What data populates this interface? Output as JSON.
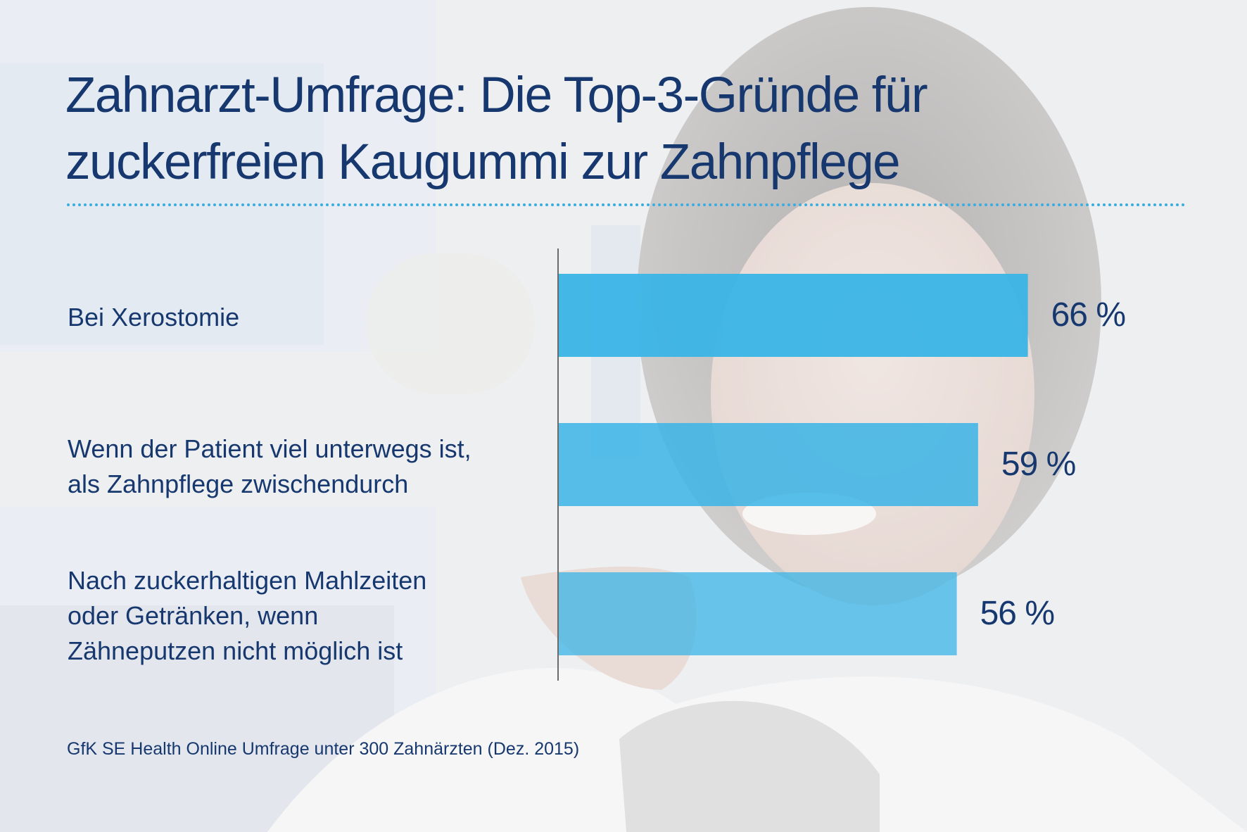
{
  "title_lines": [
    "Zahnarzt-Umfrage: Die Top-3-Gründe für",
    "zuckerfreien Kaugummi zur Zahnpflege"
  ],
  "source": "GfK SE Health Online Umfrage unter 300 Zahnärzten (Dez. 2015)",
  "colors": {
    "text": "#17386f",
    "bar": "#3ab4e6",
    "divider": "#38ade2",
    "axis": "#6b6b6b"
  },
  "background_description_icon": "dentist-photo-background",
  "chart_data": {
    "type": "bar",
    "orientation": "horizontal",
    "categories": [
      [
        "Bei Xerostomie"
      ],
      [
        "Wenn der Patient viel unterwegs ist,",
        "als Zahnpflege zwischendurch"
      ],
      [
        "Nach zuckerhaltigen Mahlzeiten",
        "oder Getränken, wenn",
        "Zähneputzen nicht möglich ist"
      ]
    ],
    "values": [
      66,
      59,
      56
    ],
    "value_labels": [
      "66 %",
      "59 %",
      "56 %"
    ],
    "unit": "%",
    "xlim": [
      0,
      100
    ],
    "grid": false,
    "legend": "none"
  }
}
